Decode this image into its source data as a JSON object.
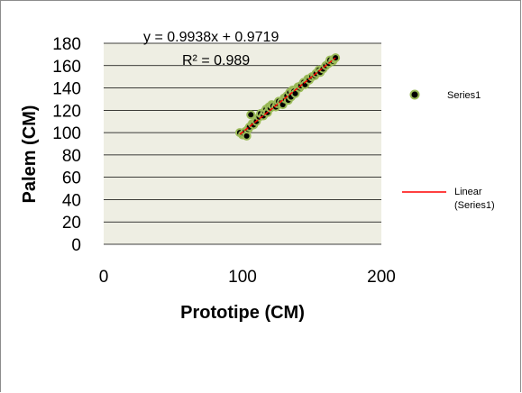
{
  "chart_data": {
    "type": "scatter",
    "xlabel": "Prototipe (CM)",
    "ylabel": "Palem (CM)",
    "xlim": [
      0,
      200
    ],
    "ylim": [
      0,
      180
    ],
    "xticks": [
      "0",
      "100",
      "200"
    ],
    "yticks": [
      "0",
      "20",
      "40",
      "60",
      "80",
      "100",
      "120",
      "140",
      "160",
      "180"
    ],
    "grid": "horizontal",
    "legend_position": "right",
    "series": [
      {
        "name": "Series1",
        "marker_fill": "#000000",
        "marker_edge": "#9bbb59",
        "x": [
          98,
          100,
          101,
          102,
          103,
          104,
          105,
          106,
          107,
          108,
          110,
          112,
          113,
          115,
          116,
          117,
          118,
          119,
          120,
          121,
          122,
          124,
          125,
          126,
          128,
          129,
          130,
          131,
          132,
          133,
          134,
          135,
          136,
          137,
          138,
          140,
          141,
          142,
          144,
          145,
          147,
          148,
          150,
          152,
          153,
          155,
          156,
          158,
          160,
          162,
          163,
          165,
          166,
          167
        ],
        "y": [
          100,
          98,
          99,
          101,
          97,
          103,
          105,
          116,
          108,
          107,
          110,
          114,
          117,
          115,
          119,
          121,
          118,
          123,
          122,
          125,
          124,
          123,
          126,
          128,
          127,
          125,
          131,
          130,
          133,
          129,
          136,
          132,
          138,
          137,
          135,
          141,
          140,
          142,
          145,
          143,
          148,
          147,
          150,
          151,
          153,
          156,
          154,
          157,
          160,
          162,
          165,
          164,
          166,
          167
        ]
      }
    ],
    "trendline": {
      "name": "Linear (Series1)",
      "slope": 0.9938,
      "intercept": 0.9719,
      "x_range": [
        98,
        167
      ],
      "color": "#ff0000",
      "equation": "y = 0.9938x + 0.9719",
      "r2": "R² = 0.989"
    }
  },
  "legend": {
    "series_label": "Series1",
    "trend_label_line1": "Linear",
    "trend_label_line2": "(Series1)"
  }
}
